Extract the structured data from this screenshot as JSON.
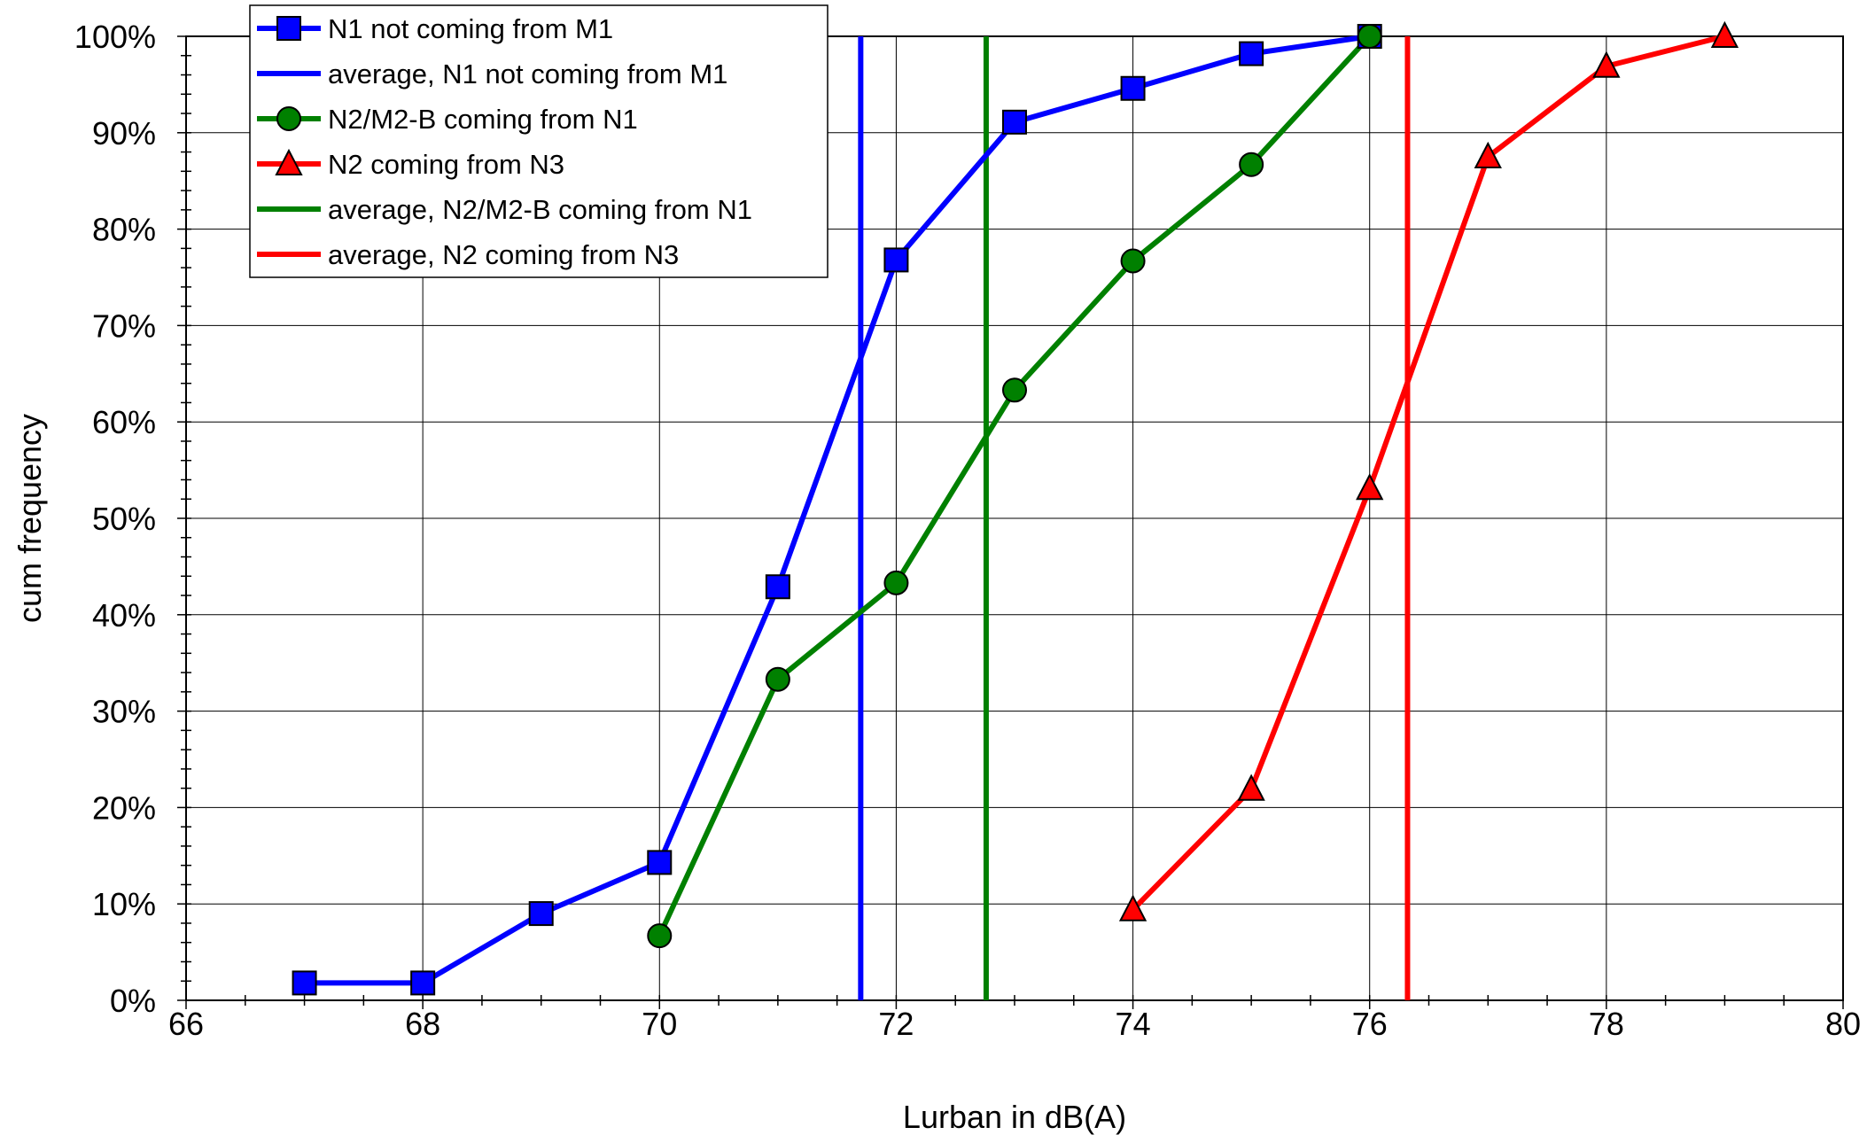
{
  "chart_data": {
    "type": "line",
    "xlabel": "Lurban in dB(A)",
    "ylabel": "cum frequency",
    "xlim": [
      66,
      80
    ],
    "ylim": [
      0,
      100
    ],
    "grid": true,
    "legend_position": "top-left",
    "x_ticks": [
      "66",
      "68",
      "70",
      "72",
      "74",
      "76",
      "78",
      "80"
    ],
    "y_ticks": [
      "0%",
      "10%",
      "20%",
      "30%",
      "40%",
      "50%",
      "60%",
      "70%",
      "80%",
      "90%",
      "100%"
    ],
    "series": [
      {
        "name": "N1 not coming from M1",
        "color": "#0000ff",
        "marker": "square",
        "marker_color": "#0000ff",
        "x": [
          67,
          68,
          69,
          70,
          71,
          72,
          73,
          74,
          75,
          76
        ],
        "y": [
          1.8,
          1.8,
          9.0,
          14.3,
          42.9,
          76.8,
          91.1,
          94.6,
          98.2,
          100
        ]
      },
      {
        "name": "N2/M2-B coming from N1",
        "color": "#008000",
        "marker": "circle",
        "marker_color": "#008000",
        "x": [
          70,
          71,
          72,
          73,
          74,
          75,
          76
        ],
        "y": [
          6.7,
          33.3,
          43.3,
          63.3,
          76.7,
          86.7,
          100
        ]
      },
      {
        "name": "N2 coming from N3",
        "color": "#ff0000",
        "marker": "triangle",
        "marker_color": "#ff0000",
        "x": [
          74,
          75,
          76,
          77,
          78,
          79
        ],
        "y": [
          9.4,
          21.9,
          53.1,
          87.5,
          96.9,
          100
        ]
      }
    ],
    "averages": [
      {
        "name": "average, N1 not coming from M1",
        "color": "#0000ff",
        "x": 71.7
      },
      {
        "name": "average, N2/M2-B coming from N1",
        "color": "#008000",
        "x": 72.76
      },
      {
        "name": "average, N2 coming from N3",
        "color": "#ff0000",
        "x": 76.32
      }
    ],
    "legend": [
      {
        "label": "N1 not coming from M1",
        "color": "#0000ff",
        "marker": "square"
      },
      {
        "label": "average, N1 not coming from M1",
        "color": "#0000ff",
        "marker": "none"
      },
      {
        "label": "N2/M2-B coming from N1",
        "color": "#008000",
        "marker": "circle"
      },
      {
        "label": "N2 coming from N3",
        "color": "#ff0000",
        "marker": "triangle"
      },
      {
        "label": "average, N2/M2-B coming from N1",
        "color": "#008000",
        "marker": "none"
      },
      {
        "label": "average, N2 coming from N3",
        "color": "#ff0000",
        "marker": "none"
      }
    ]
  }
}
